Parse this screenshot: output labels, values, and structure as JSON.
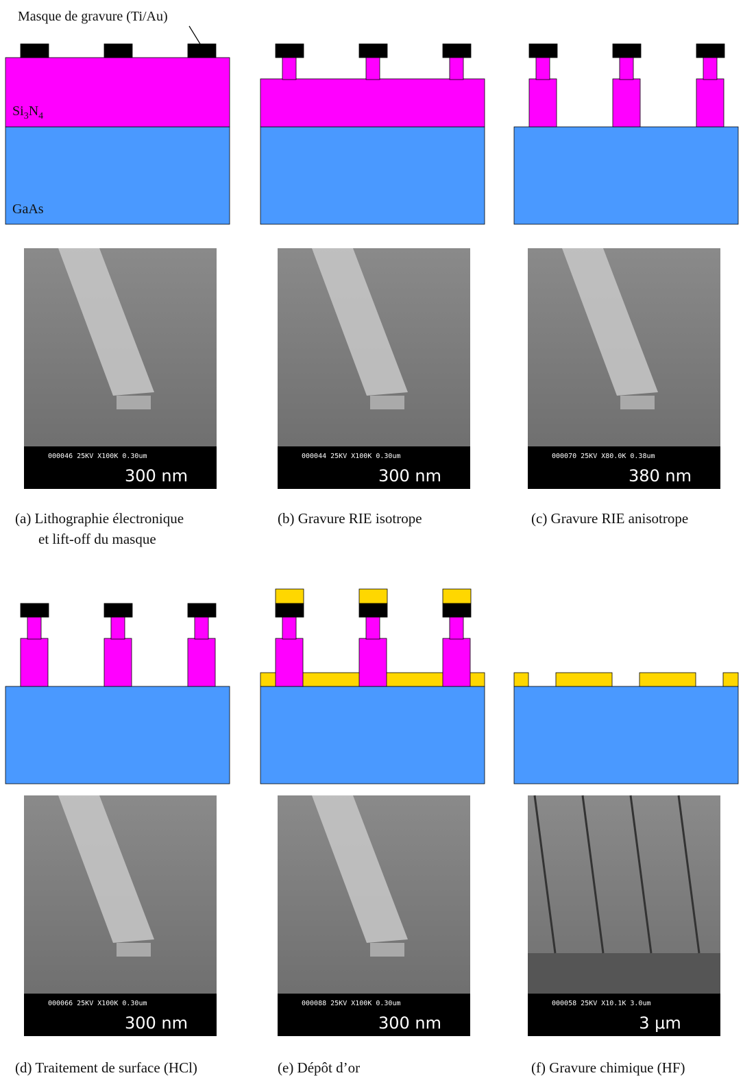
{
  "annotations": {
    "mask": "Masque de gravure (Ti/Au)",
    "layer": [
      "Si",
      "3",
      "N",
      "4"
    ],
    "substrate": "GaAs"
  },
  "panels": [
    {
      "caption": [
        "(a) Lithographie électronique",
        "et lift-off du masque"
      ],
      "sem": {
        "info": "000046 25KV X100K 0.30um",
        "scale": "300 nm"
      }
    },
    {
      "caption": [
        "(b) Gravure RIE isotrope"
      ],
      "sem": {
        "info": "000044 25KV X100K 0.30um",
        "scale": "300 nm"
      }
    },
    {
      "caption": [
        "(c) Gravure RIE anisotrope"
      ],
      "sem": {
        "info": "000070 25KV X80.0K 0.38um",
        "scale": "380 nm"
      }
    },
    {
      "caption": [
        "(d) Traitement de surface (HCl)"
      ],
      "sem": {
        "info": "000066 25KV X100K 0.30um",
        "scale": "300 nm"
      }
    },
    {
      "caption": [
        "(e) Dépôt d’or"
      ],
      "sem": {
        "info": "000088 25KV X100K 0.30um",
        "scale": "300 nm"
      }
    },
    {
      "caption": [
        "(f) Gravure chimique (HF)"
      ],
      "sem": {
        "info": "000058 25KV X10.1K 3.0um",
        "scale": "3 μm"
      }
    }
  ]
}
